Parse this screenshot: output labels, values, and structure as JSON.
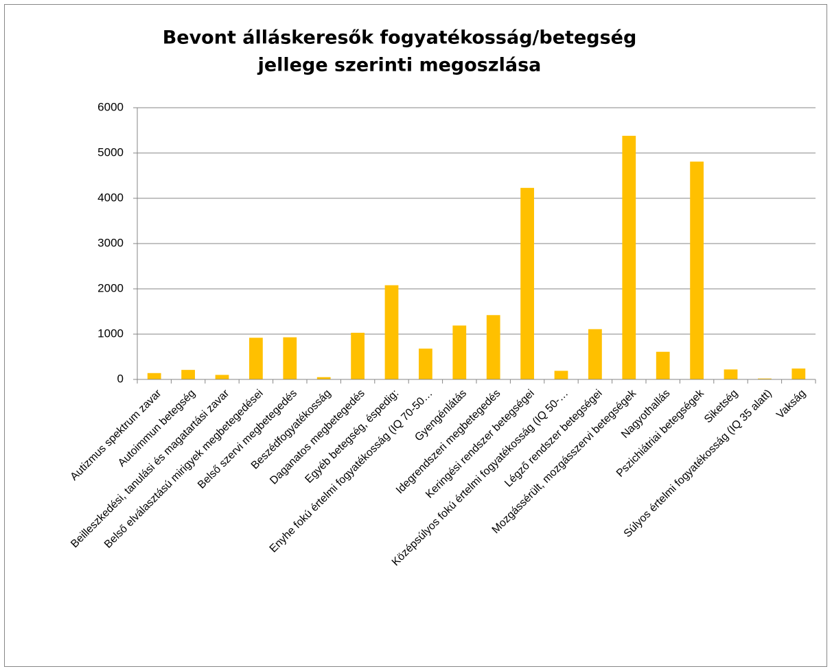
{
  "chart_data": {
    "type": "bar",
    "title": [
      "Bevont álláskeresők fogyatékosság/betegség",
      "jellege szerinti megoszlása"
    ],
    "categories": [
      "Autizmus spektrum zavar",
      "Autoimmun betegség",
      "Beilleszkedési, tanulási és magatartási zavar",
      "Belső elválasztású mirigyek megbetegedései",
      "Belső szervi megbetegedés",
      "Beszédfogyatékosság",
      "Daganatos megbetegedés",
      "Egyéb betegség, éspedig:",
      "Enyhe fokú értelmi fogyatékosság (IQ 70-50…",
      "Gyengénlátás",
      "Idegrendszeri megbetegedés",
      "Keringési rendszer betegségei",
      "Középsúlyos fokú értelmi fogyatékosság (IQ 50-…",
      "Légző rendszer betegségei",
      "Mozgássérült, mozgásszervi betegségek",
      "Nagyothallás",
      "Pszichiátriai betegségek",
      "Siketség",
      "Súlyos értelmi fogyatékosság (IQ 35 alatt)",
      "Vakság"
    ],
    "values": [
      140,
      210,
      100,
      920,
      930,
      50,
      1030,
      2080,
      680,
      1190,
      1420,
      4230,
      190,
      1110,
      5380,
      610,
      4810,
      220,
      20,
      240
    ],
    "color": "#ffc000",
    "ylim": [
      0,
      6000
    ],
    "yticks": [
      0,
      1000,
      2000,
      3000,
      4000,
      5000,
      6000
    ],
    "grid": true
  }
}
